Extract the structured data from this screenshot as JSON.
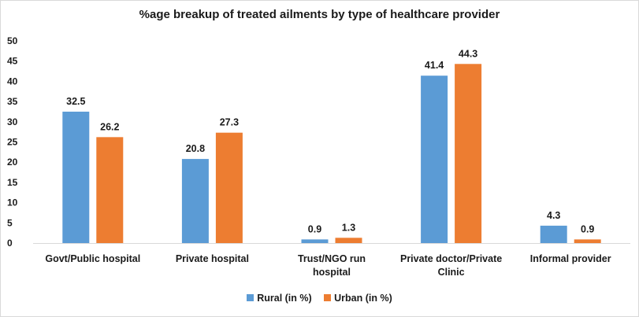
{
  "chart_data": {
    "type": "bar",
    "title": "%age breakup of treated ailments by type of healthcare provider",
    "xlabel": "",
    "ylabel": "",
    "ylim": [
      0,
      50
    ],
    "yticks": [
      0,
      5,
      10,
      15,
      20,
      25,
      30,
      35,
      40,
      45,
      50
    ],
    "grid": false,
    "legend_position": "bottom",
    "categories": [
      [
        "Govt/Public hospital"
      ],
      [
        "Private hospital"
      ],
      [
        "Trust/NGO run",
        "hospital"
      ],
      [
        "Private doctor/Private",
        "Clinic"
      ],
      [
        "Informal provider"
      ]
    ],
    "series": [
      {
        "name": "Rural (in %)",
        "color": "#5b9bd5",
        "values": [
          32.5,
          20.8,
          0.9,
          41.4,
          4.3
        ]
      },
      {
        "name": "Urban (in %)",
        "color": "#ed7d31",
        "values": [
          26.2,
          27.3,
          1.3,
          44.3,
          0.9
        ]
      }
    ]
  }
}
